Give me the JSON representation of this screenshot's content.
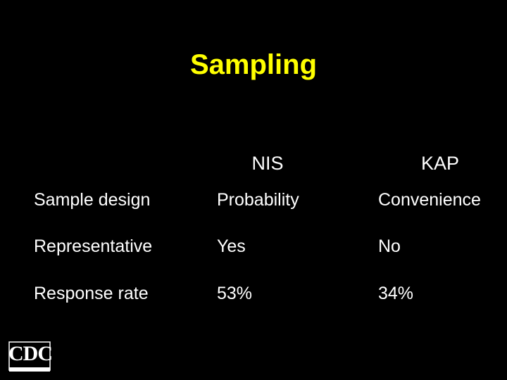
{
  "title": "Sampling",
  "table": {
    "columns": [
      "NIS",
      "KAP"
    ],
    "rows": [
      [
        "Sample design",
        "Probability",
        "Convenience"
      ],
      [
        "Representative",
        "Yes",
        "No"
      ],
      [
        "Response rate",
        "53%",
        "34%"
      ]
    ]
  },
  "logo": {
    "text": "CDC"
  }
}
